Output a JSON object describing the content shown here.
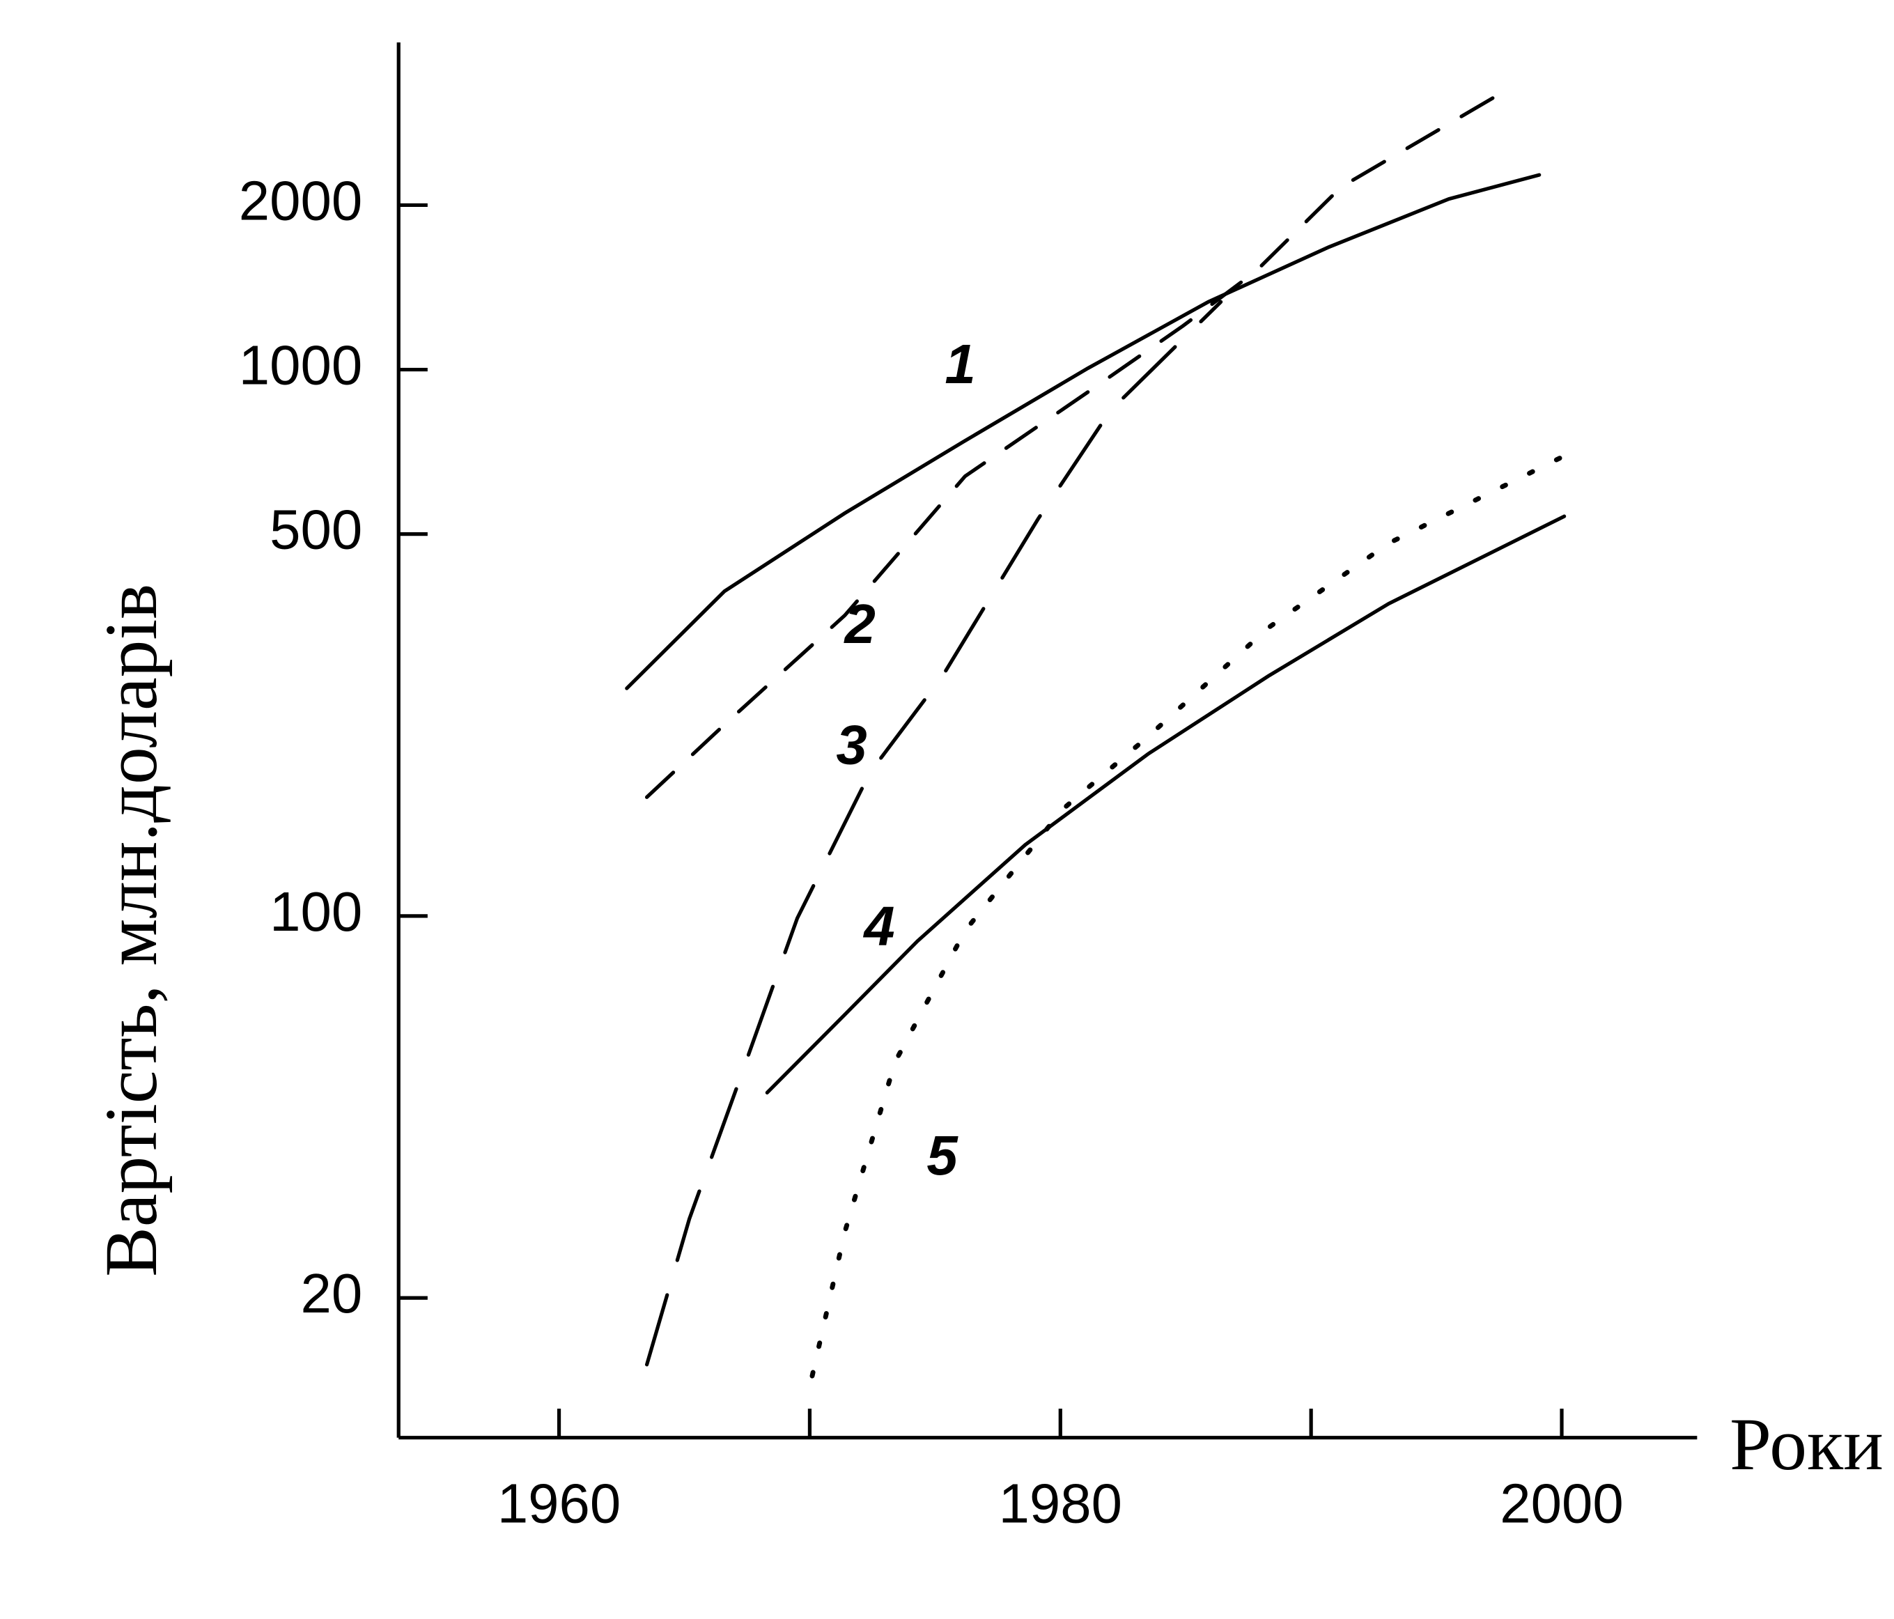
{
  "chart_data": {
    "type": "line",
    "y_label": "Вартість, млн.доларів",
    "x_label": "Роки",
    "xlim": [
      1953.6,
      2005.4
    ],
    "xticks": [
      1960,
      1980,
      2000
    ],
    "xminorticks": [
      1970,
      1990
    ],
    "ylim": [
      11.1,
      3970
    ],
    "yticks": [
      20,
      100,
      500,
      1000,
      2000
    ],
    "log_y": true,
    "grid": false,
    "series": [
      {
        "name": "1",
        "color": "#000000",
        "style": "solid",
        "x": [
          1962.7,
          1966.6,
          1971.4,
          1976.2,
          1981.1,
          1985.9,
          1990.7,
          1995.5,
          1999.1
        ],
        "values": [
          261,
          393,
          546,
          741,
          1006,
          1330,
          1675,
          2052,
          2271
        ]
      },
      {
        "name": "2",
        "color": "#000000",
        "style": "dashed",
        "x": [
          1963.5,
          1966.6,
          1971.4,
          1976.2,
          1981.1,
          1984.9,
          1987.8,
          1991.2,
          1997.4
        ],
        "values": [
          165,
          224,
          355,
          638,
          910,
          1203,
          1514,
          2158,
          3170
        ]
      },
      {
        "name": "3",
        "color": "#000000",
        "style": "longdash",
        "x": [
          1963.5,
          1965.2,
          1967.1,
          1969.5,
          1972.4,
          1975.3,
          1979.1,
          1982.0,
          1986.4
        ],
        "values": [
          15.1,
          27.9,
          48.7,
          99,
          183,
          275,
          532,
          842,
          1330
        ]
      },
      {
        "name": "4",
        "color": "#000000",
        "style": "solid",
        "x": [
          1968.3,
          1971.4,
          1974.3,
          1978.6,
          1983.5,
          1988.3,
          1993.1,
          2000.1
        ],
        "values": [
          47.5,
          66,
          90,
          135,
          198,
          275,
          373,
          539
        ]
      },
      {
        "name": "5",
        "color": "#000000",
        "style": "dotted",
        "x": [
          1970.1,
          1971.4,
          1973.4,
          1976.2,
          1980.1,
          1983.5,
          1988.3,
          1993.1,
          2000.1
        ],
        "values": [
          14.4,
          26.4,
          54,
          94,
          157,
          213,
          337,
          481,
          695
        ]
      }
    ]
  }
}
